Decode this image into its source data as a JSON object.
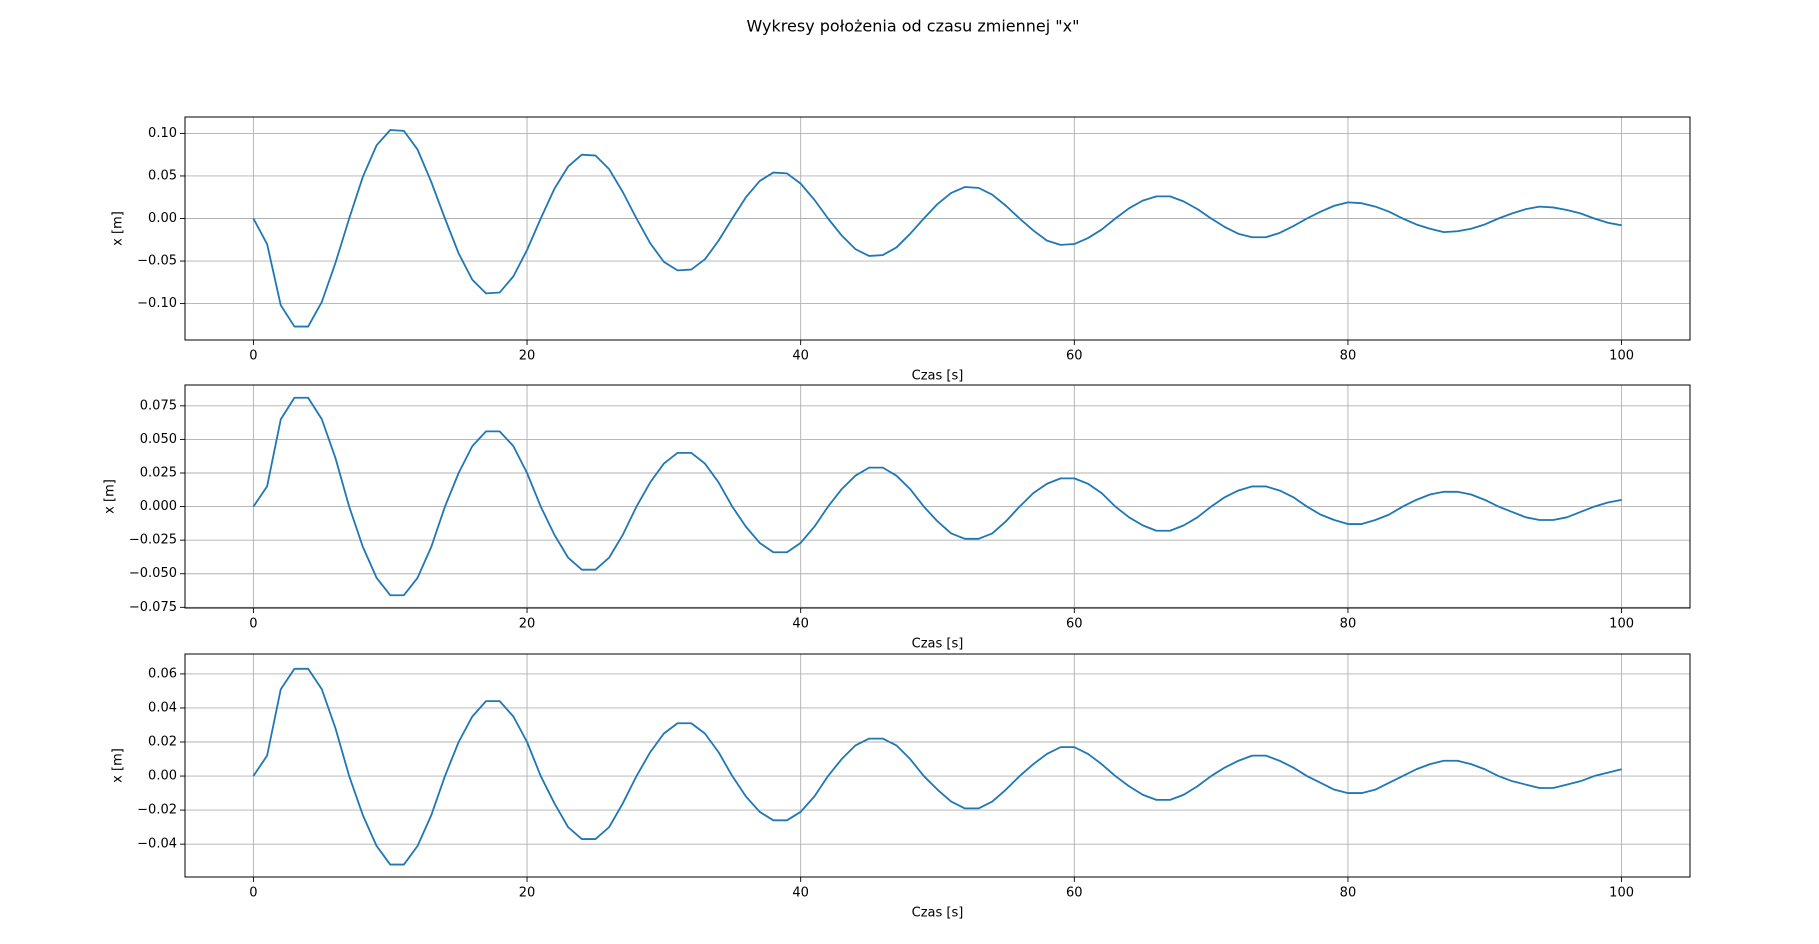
{
  "title": "Wykresy położenia od czasu zmiennej \"x\"",
  "chart_data": [
    {
      "type": "line",
      "xlabel": "Czas [s]",
      "ylabel": "x [m]",
      "color": "#1f77b4",
      "grid": true,
      "xlim": [
        -5,
        105
      ],
      "xticks": [
        0,
        20,
        40,
        60,
        80,
        100
      ],
      "ylim": [
        -0.1428,
        0.1193
      ],
      "yticks": [
        {
          "value": -0.1,
          "label": "−0.10"
        },
        {
          "value": -0.05,
          "label": "−0.05"
        },
        {
          "value": 0,
          "label": "0.00"
        },
        {
          "value": 0.05,
          "label": "0.05"
        },
        {
          "value": 0.1,
          "label": "0.10"
        }
      ],
      "x": [
        0,
        1,
        2,
        3,
        4,
        5,
        6,
        7,
        8,
        9,
        10,
        11,
        12,
        13,
        14,
        15,
        16,
        17,
        18,
        19,
        20,
        21,
        22,
        23,
        24,
        25,
        26,
        27,
        28,
        29,
        30,
        31,
        32,
        33,
        34,
        35,
        36,
        37,
        38,
        39,
        40,
        41,
        42,
        43,
        44,
        45,
        46,
        47,
        48,
        49,
        50,
        51,
        52,
        53,
        54,
        55,
        56,
        57,
        58,
        59,
        60,
        61,
        62,
        63,
        64,
        65,
        66,
        67,
        68,
        69,
        70,
        71,
        72,
        73,
        74,
        75,
        76,
        77,
        78,
        79,
        80,
        81,
        82,
        83,
        84,
        85,
        86,
        87,
        88,
        89,
        90,
        91,
        92,
        93,
        94,
        95,
        96,
        97,
        98,
        99,
        100
      ],
      "values": [
        0,
        -0.03,
        -0.102,
        -0.127,
        -0.127,
        -0.098,
        -0.052,
        0,
        0.049,
        0.086,
        0.104,
        0.103,
        0.081,
        0.043,
        0,
        -0.041,
        -0.072,
        -0.088,
        -0.087,
        -0.068,
        -0.037,
        0,
        0.035,
        0.061,
        0.075,
        0.074,
        0.058,
        0.031,
        0,
        -0.029,
        -0.051,
        -0.061,
        -0.06,
        -0.048,
        -0.026,
        0,
        0.025,
        0.044,
        0.054,
        0.053,
        0.041,
        0.022,
        0,
        -0.02,
        -0.036,
        -0.044,
        -0.043,
        -0.034,
        -0.018,
        0,
        0.017,
        0.03,
        0.037,
        0.036,
        0.028,
        0.015,
        0,
        -0.014,
        -0.026,
        -0.031,
        -0.03,
        -0.023,
        -0.013,
        0,
        0.012,
        0.021,
        0.026,
        0.026,
        0.02,
        0.011,
        0,
        -0.01,
        -0.018,
        -0.022,
        -0.022,
        -0.017,
        -0.009,
        0,
        0.008,
        0.015,
        0.019,
        0.018,
        0.014,
        0.008,
        0,
        -0.007,
        -0.012,
        -0.016,
        -0.015,
        -0.012,
        -0.007,
        0,
        0.006,
        0.011,
        0.014,
        0.013,
        0.01,
        0.006,
        0,
        -0.005,
        -0.008
      ]
    },
    {
      "type": "line",
      "xlabel": "Czas [s]",
      "ylabel": "x [m]",
      "color": "#1f77b4",
      "grid": true,
      "xlim": [
        -5,
        105
      ],
      "xticks": [
        0,
        20,
        40,
        60,
        80,
        100
      ],
      "ylim": [
        -0.0755,
        0.0905
      ],
      "yticks": [
        {
          "value": -0.075,
          "label": "−0.075"
        },
        {
          "value": -0.05,
          "label": "−0.050"
        },
        {
          "value": -0.025,
          "label": "−0.025"
        },
        {
          "value": 0,
          "label": "0.000"
        },
        {
          "value": 0.025,
          "label": "0.025"
        },
        {
          "value": 0.05,
          "label": "0.050"
        },
        {
          "value": 0.075,
          "label": "0.075"
        }
      ],
      "x": [
        0,
        1,
        2,
        3,
        4,
        5,
        6,
        7,
        8,
        9,
        10,
        11,
        12,
        13,
        14,
        15,
        16,
        17,
        18,
        19,
        20,
        21,
        22,
        23,
        24,
        25,
        26,
        27,
        28,
        29,
        30,
        31,
        32,
        33,
        34,
        35,
        36,
        37,
        38,
        39,
        40,
        41,
        42,
        43,
        44,
        45,
        46,
        47,
        48,
        49,
        50,
        51,
        52,
        53,
        54,
        55,
        56,
        57,
        58,
        59,
        60,
        61,
        62,
        63,
        64,
        65,
        66,
        67,
        68,
        69,
        70,
        71,
        72,
        73,
        74,
        75,
        76,
        77,
        78,
        79,
        80,
        81,
        82,
        83,
        84,
        85,
        86,
        87,
        88,
        89,
        90,
        91,
        92,
        93,
        94,
        95,
        96,
        97,
        98,
        99,
        100
      ],
      "values": [
        0,
        0.015,
        0.065,
        0.081,
        0.081,
        0.065,
        0.036,
        0,
        -0.03,
        -0.053,
        -0.066,
        -0.066,
        -0.053,
        -0.03,
        0,
        0.025,
        0.045,
        0.056,
        0.056,
        0.045,
        0.025,
        0,
        -0.021,
        -0.038,
        -0.047,
        -0.047,
        -0.038,
        -0.021,
        0,
        0.018,
        0.032,
        0.04,
        0.04,
        0.032,
        0.018,
        0,
        -0.015,
        -0.027,
        -0.034,
        -0.034,
        -0.027,
        -0.015,
        0,
        0.013,
        0.023,
        0.029,
        0.029,
        0.023,
        0.013,
        0,
        -0.011,
        -0.02,
        -0.024,
        -0.024,
        -0.02,
        -0.011,
        0,
        0.01,
        0.017,
        0.021,
        0.021,
        0.017,
        0.01,
        0,
        -0.008,
        -0.014,
        -0.018,
        -0.018,
        -0.014,
        -0.008,
        0,
        0.007,
        0.012,
        0.015,
        0.015,
        0.012,
        0.007,
        0,
        -0.006,
        -0.01,
        -0.013,
        -0.013,
        -0.01,
        -0.006,
        0,
        0.005,
        0.009,
        0.011,
        0.011,
        0.009,
        0.005,
        0,
        -0.004,
        -0.008,
        -0.01,
        -0.01,
        -0.008,
        -0.004,
        0,
        0.003,
        0.005
      ]
    },
    {
      "type": "line",
      "xlabel": "Czas [s]",
      "ylabel": "x [m]",
      "color": "#1f77b4",
      "grid": true,
      "xlim": [
        -5,
        105
      ],
      "xticks": [
        0,
        20,
        40,
        60,
        80,
        100
      ],
      "ylim": [
        -0.0593,
        0.0717
      ],
      "yticks": [
        {
          "value": -0.04,
          "label": "−0.04"
        },
        {
          "value": -0.02,
          "label": "−0.02"
        },
        {
          "value": 0,
          "label": "0.00"
        },
        {
          "value": 0.02,
          "label": "0.02"
        },
        {
          "value": 0.04,
          "label": "0.04"
        },
        {
          "value": 0.06,
          "label": "0.06"
        }
      ],
      "x": [
        0,
        1,
        2,
        3,
        4,
        5,
        6,
        7,
        8,
        9,
        10,
        11,
        12,
        13,
        14,
        15,
        16,
        17,
        18,
        19,
        20,
        21,
        22,
        23,
        24,
        25,
        26,
        27,
        28,
        29,
        30,
        31,
        32,
        33,
        34,
        35,
        36,
        37,
        38,
        39,
        40,
        41,
        42,
        43,
        44,
        45,
        46,
        47,
        48,
        49,
        50,
        51,
        52,
        53,
        54,
        55,
        56,
        57,
        58,
        59,
        60,
        61,
        62,
        63,
        64,
        65,
        66,
        67,
        68,
        69,
        70,
        71,
        72,
        73,
        74,
        75,
        76,
        77,
        78,
        79,
        80,
        81,
        82,
        83,
        84,
        85,
        86,
        87,
        88,
        89,
        90,
        91,
        92,
        93,
        94,
        95,
        96,
        97,
        98,
        99,
        100
      ],
      "values": [
        0,
        0.012,
        0.051,
        0.063,
        0.063,
        0.051,
        0.028,
        0,
        -0.023,
        -0.041,
        -0.052,
        -0.052,
        -0.041,
        -0.023,
        0,
        0.02,
        0.035,
        0.044,
        0.044,
        0.035,
        0.02,
        0,
        -0.016,
        -0.03,
        -0.037,
        -0.037,
        -0.03,
        -0.016,
        0,
        0.014,
        0.025,
        0.031,
        0.031,
        0.025,
        0.014,
        0,
        -0.012,
        -0.021,
        -0.026,
        -0.026,
        -0.021,
        -0.012,
        0,
        0.01,
        0.018,
        0.022,
        0.022,
        0.018,
        0.01,
        0,
        -0.008,
        -0.015,
        -0.019,
        -0.019,
        -0.015,
        -0.008,
        0,
        0.007,
        0.013,
        0.017,
        0.017,
        0.013,
        0.007,
        0,
        -0.006,
        -0.011,
        -0.014,
        -0.014,
        -0.011,
        -0.006,
        0,
        0.005,
        0.009,
        0.012,
        0.012,
        0.009,
        0.005,
        0,
        -0.004,
        -0.008,
        -0.01,
        -0.01,
        -0.008,
        -0.004,
        0,
        0.004,
        0.007,
        0.009,
        0.009,
        0.007,
        0.004,
        0,
        -0.003,
        -0.005,
        -0.007,
        -0.007,
        -0.005,
        -0.003,
        0,
        0.002,
        0.004
      ]
    }
  ]
}
